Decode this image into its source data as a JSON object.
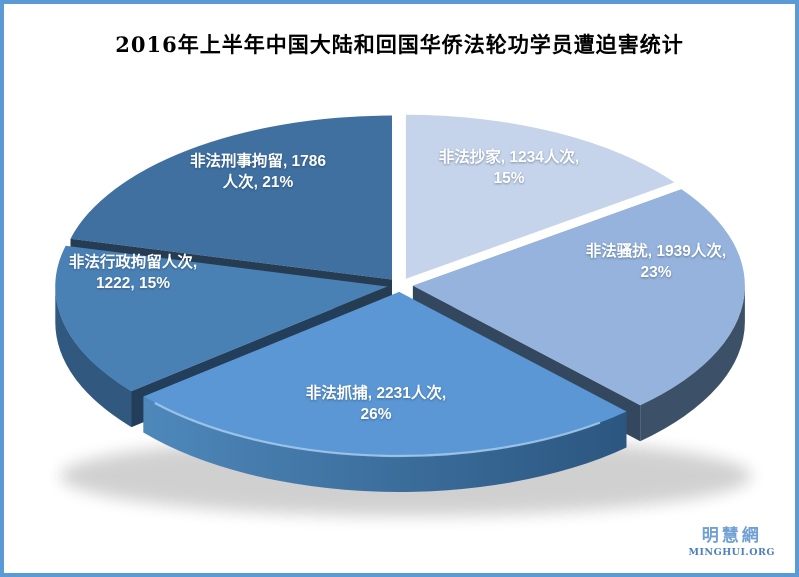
{
  "title": "2016年上半年中国大陆和回国华侨法轮功学员遭迫害统计",
  "palette": {
    "frame_border": "#5b9bd5",
    "background": "#ffffff",
    "title_text": "#000000",
    "label_text": "#ffffff"
  },
  "watermark": {
    "site_name_cn": "明慧網",
    "site_name_en": "MINGHUI.ORG",
    "color_cn": "#6f9fd3",
    "color_en": "#4d7fbe"
  },
  "chart_data": {
    "type": "pie",
    "style": "3d-exploded",
    "title": "2016年上半年中国大陆和回国华侨法轮功学员遭迫害统计",
    "start_angle_deg": 0,
    "direction": "clockwise",
    "unit": "人次",
    "slices": [
      {
        "name": "非法抄家",
        "count": 1234,
        "unit": "人次",
        "percent": 15,
        "color": "#c5d4ea",
        "label_lines": [
          "非法抄家, 1234人次,",
          "15%"
        ]
      },
      {
        "name": "非法骚扰",
        "count": 1939,
        "unit": "人次",
        "percent": 23,
        "color": "#95b3dc",
        "wall_color": "#3c5168",
        "cut_start": "#72808f",
        "cut_end": "#33485e",
        "label_lines": [
          "非法骚扰, 1939人次,",
          "23%"
        ]
      },
      {
        "name": "非法抓捕",
        "count": 2231,
        "unit": "人次",
        "percent": 26,
        "color": "#5b97d4",
        "wall_gradient": [
          "#4e88bb",
          "#2b5680"
        ],
        "cut_start": "#2a5a8a",
        "cut_end": "#2a5a8a",
        "rim_highlight": true,
        "label_lines": [
          "非法抓捕, 2231人次,",
          "26%"
        ]
      },
      {
        "name": "非法行政拘留",
        "count": 1222,
        "unit": "人次",
        "percent": 15,
        "color": "#4a81b5",
        "wall_color": "#31597f",
        "cut_start": "#223e5a",
        "label_lines": [
          "非法行政拘留人次,",
          "1222, 15%"
        ]
      },
      {
        "name": "非法刑事拘留",
        "count": 1786,
        "unit": "人次",
        "percent": 21,
        "color": "#3f70a0",
        "cut_start": "#263c52",
        "label_lines": [
          "非法刑事拘留, 1786",
          "人次, 21%"
        ]
      }
    ]
  }
}
